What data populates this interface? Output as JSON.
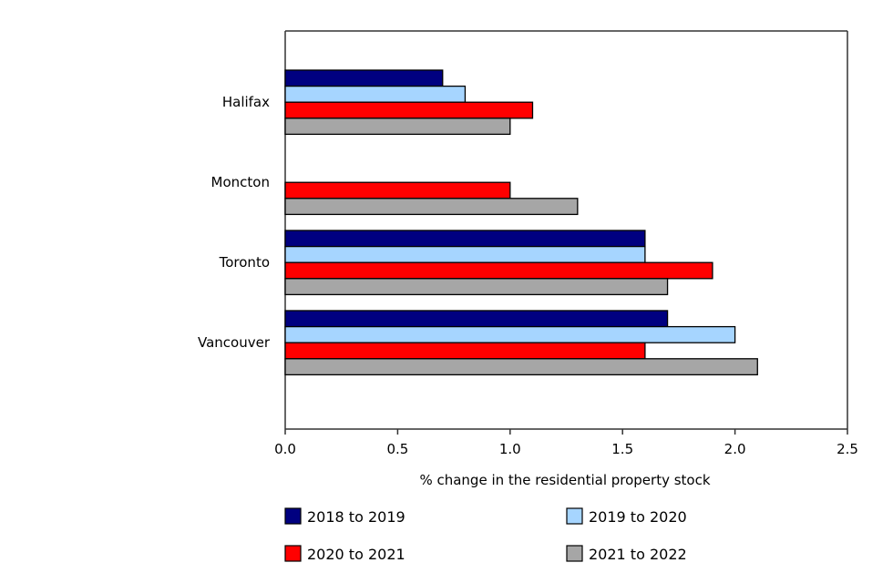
{
  "chart_data": {
    "type": "bar",
    "orientation": "horizontal",
    "categories": [
      "Halifax",
      "Moncton",
      "Toronto",
      "Vancouver"
    ],
    "series": [
      {
        "name": "2018 to 2019",
        "color": "#000080",
        "values": [
          0.7,
          null,
          1.6,
          1.7
        ]
      },
      {
        "name": "2019 to 2020",
        "color": "#a6d5ff",
        "values": [
          0.8,
          null,
          1.6,
          2.0
        ]
      },
      {
        "name": "2020 to 2021",
        "color": "#ff0000",
        "values": [
          1.1,
          1.0,
          1.9,
          1.6
        ]
      },
      {
        "name": "2021 to 2022",
        "color": "#a6a6a6",
        "values": [
          1.0,
          1.3,
          1.7,
          2.1
        ]
      }
    ],
    "xlabel": "% change in the residential property stock",
    "xlim": [
      0,
      2.5
    ],
    "xticks": [
      "0.0",
      "0.5",
      "1.0",
      "1.5",
      "2.0",
      "2.5"
    ],
    "grid": false,
    "legend_position": "bottom"
  }
}
